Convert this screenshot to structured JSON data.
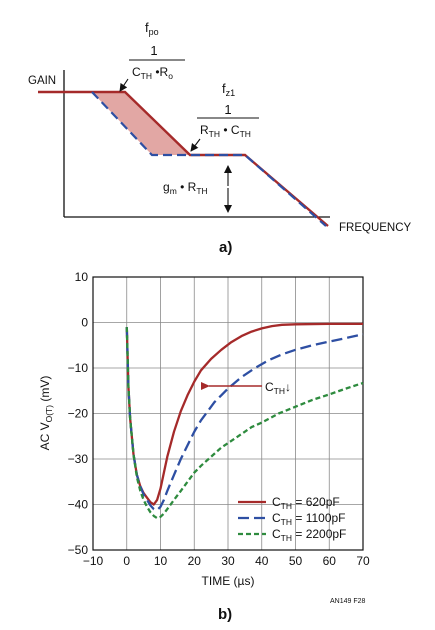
{
  "colors": {
    "red": "#A52A2A",
    "blue": "#2E4FA3",
    "green": "#2E8B3E",
    "fill": "#E2A7A4",
    "ink": "#111111"
  },
  "panel_a": {
    "caption": "a)",
    "gain_label": "GAIN",
    "frequency_label": "FREQUENCY",
    "fpo_label": "f",
    "fpo_sub": "po",
    "fpo_num": "1",
    "fpo_den_a": "C",
    "fpo_den_a_sub": "TH",
    "fpo_den_mid": " •R",
    "fpo_den_b_sub": "o",
    "fz1_label": "f",
    "fz1_sub": "z1",
    "fz1_num": "1",
    "fz1_den_a": "R",
    "fz1_den_a_sub": "TH",
    "fz1_den_mid": " • C",
    "fz1_den_b_sub": "TH",
    "gm_main": "g",
    "gm_sub": "m",
    "gm_mid": " • R",
    "gm_sub2": "TH"
  },
  "panel_b": {
    "caption": "b)",
    "note": "AN149 F28",
    "arrow_label_main": "C",
    "arrow_label_sub": "TH",
    "arrow_label_tail": "↓",
    "ylabel_main": "AC V",
    "ylabel_sub": "O(T)",
    "ylabel_unit": " (mV)"
  },
  "chart_data": {
    "type": "line",
    "xlabel": "TIME (µs)",
    "ylabel": "AC VO(T) (mV)",
    "xlim": [
      -10,
      70
    ],
    "ylim": [
      -50,
      10
    ],
    "xticks": [
      -10,
      0,
      10,
      20,
      30,
      40,
      50,
      60,
      70
    ],
    "yticks": [
      -50,
      -40,
      -30,
      -20,
      -10,
      0,
      10
    ],
    "grid": true,
    "legend_position": "bottom-right",
    "series": [
      {
        "name": "CTH = 620pF",
        "name_main": "C",
        "name_sub": "TH",
        "name_tail": " = 620pF",
        "style": "solid",
        "points": [
          [
            0,
            -1
          ],
          [
            0.5,
            -14
          ],
          [
            1,
            -21
          ],
          [
            2,
            -29
          ],
          [
            3,
            -33.5
          ],
          [
            4,
            -36
          ],
          [
            5,
            -37.5
          ],
          [
            6,
            -38.5
          ],
          [
            7,
            -39.5
          ],
          [
            8,
            -40
          ],
          [
            9,
            -39
          ],
          [
            10,
            -36.5
          ],
          [
            11,
            -33
          ],
          [
            12,
            -29.5
          ],
          [
            14,
            -24
          ],
          [
            16,
            -19.5
          ],
          [
            18,
            -16
          ],
          [
            20,
            -13
          ],
          [
            22,
            -10.5
          ],
          [
            25,
            -8
          ],
          [
            28,
            -6
          ],
          [
            31,
            -4.3
          ],
          [
            34,
            -3
          ],
          [
            37,
            -2
          ],
          [
            40,
            -1.3
          ],
          [
            43,
            -0.8
          ],
          [
            46,
            -0.5
          ],
          [
            50,
            -0.4
          ],
          [
            60,
            -0.3
          ],
          [
            70,
            -0.3
          ]
        ]
      },
      {
        "name": "CTH = 1100pF",
        "name_main": "C",
        "name_sub": "TH",
        "name_tail": " = 1100pF",
        "style": "dash",
        "points": [
          [
            0,
            -1
          ],
          [
            0.5,
            -14
          ],
          [
            1,
            -21
          ],
          [
            2,
            -29
          ],
          [
            3,
            -33.5
          ],
          [
            4,
            -36
          ],
          [
            5,
            -37.8
          ],
          [
            6,
            -39
          ],
          [
            7,
            -40.2
          ],
          [
            8,
            -41
          ],
          [
            9,
            -41.2
          ],
          [
            10,
            -40.5
          ],
          [
            11,
            -39
          ],
          [
            12,
            -37
          ],
          [
            14,
            -33.5
          ],
          [
            16,
            -30
          ],
          [
            18,
            -27
          ],
          [
            20,
            -24
          ],
          [
            22,
            -21.5
          ],
          [
            24,
            -19.5
          ],
          [
            26,
            -17.5
          ],
          [
            28,
            -16
          ],
          [
            30,
            -14.5
          ],
          [
            34,
            -12
          ],
          [
            38,
            -10
          ],
          [
            42,
            -8.3
          ],
          [
            46,
            -7
          ],
          [
            50,
            -6
          ],
          [
            55,
            -5
          ],
          [
            60,
            -4.2
          ],
          [
            65,
            -3.4
          ],
          [
            70,
            -2.6
          ]
        ]
      },
      {
        "name": "CTH = 2200pF",
        "name_main": "C",
        "name_sub": "TH",
        "name_tail": " = 2200pF",
        "style": "dot",
        "points": [
          [
            0,
            -1
          ],
          [
            0.5,
            -14
          ],
          [
            1,
            -21
          ],
          [
            2,
            -29
          ],
          [
            3,
            -34
          ],
          [
            4,
            -37
          ],
          [
            5,
            -39
          ],
          [
            6,
            -40.5
          ],
          [
            7,
            -41.7
          ],
          [
            8,
            -42.5
          ],
          [
            9,
            -43
          ],
          [
            10,
            -42.7
          ],
          [
            11,
            -42
          ],
          [
            12,
            -41
          ],
          [
            14,
            -39
          ],
          [
            16,
            -37
          ],
          [
            18,
            -35
          ],
          [
            20,
            -33
          ],
          [
            22,
            -31.5
          ],
          [
            25,
            -29.5
          ],
          [
            28,
            -27.5
          ],
          [
            31,
            -26
          ],
          [
            34,
            -24.5
          ],
          [
            37,
            -23
          ],
          [
            40,
            -22
          ],
          [
            45,
            -20
          ],
          [
            50,
            -18.5
          ],
          [
            55,
            -17
          ],
          [
            60,
            -15.8
          ],
          [
            65,
            -14.5
          ],
          [
            70,
            -13.3
          ]
        ]
      }
    ]
  }
}
